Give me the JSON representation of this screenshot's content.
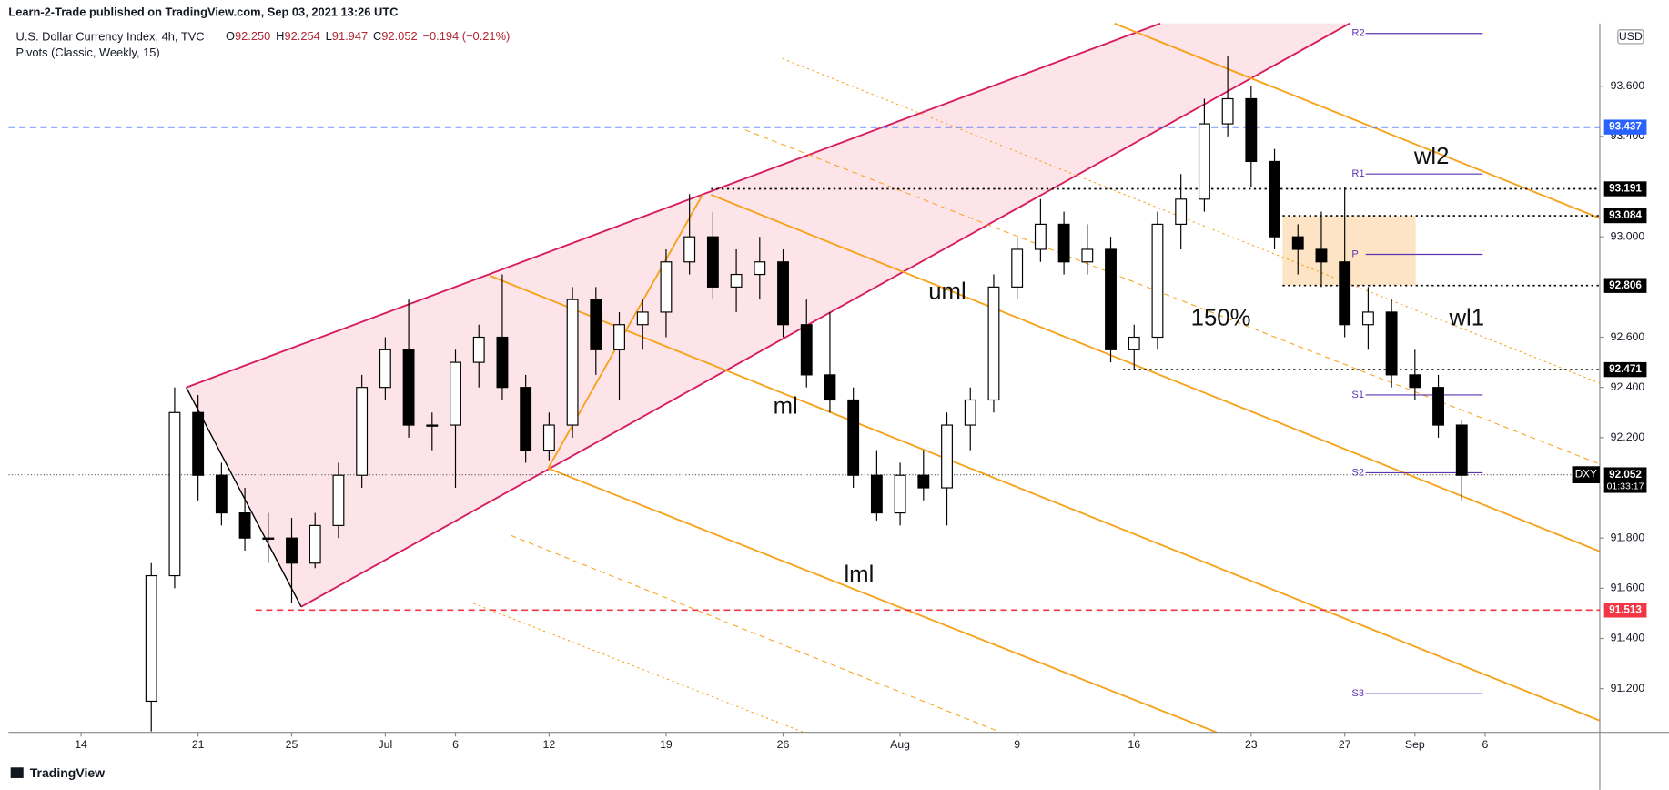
{
  "header": {
    "published": "Learn-2-Trade published on TradingView.com, Sep 03, 2021 13:26 UTC",
    "symbol": "U.S. Dollar Currency Index, 4h, TVC",
    "ohlc": [
      {
        "key": "O",
        "text": "92.250"
      },
      {
        "key": "H",
        "text": "92.254"
      },
      {
        "key": "L",
        "text": "91.947"
      },
      {
        "key": "C",
        "text": "92.052"
      }
    ],
    "change": "−0.194 (−0.21%)",
    "indicator": "Pivots (Classic, Weekly, 15)",
    "currency": "USD",
    "ticker": "DXY",
    "countdown": "01:33:17"
  },
  "footer": {
    "brand": "TradingView"
  },
  "chart_data": {
    "type": "candlestick",
    "x": [
      3,
      4,
      5,
      6,
      7,
      8,
      9,
      10,
      11,
      12,
      13,
      14,
      15,
      16,
      17,
      18,
      19,
      20,
      21,
      22,
      23,
      24,
      25,
      26,
      27,
      28,
      29,
      30,
      31,
      32,
      33,
      34,
      35,
      36,
      37,
      38,
      39,
      40,
      41,
      42,
      43,
      44,
      45,
      46,
      47,
      48,
      49,
      50,
      51,
      52,
      53,
      54,
      55,
      56,
      57,
      58,
      59
    ],
    "open": [
      91.15,
      91.65,
      92.3,
      92.05,
      91.9,
      91.8,
      91.8,
      91.7,
      91.85,
      92.05,
      92.4,
      92.55,
      92.25,
      92.25,
      92.5,
      92.6,
      92.4,
      92.15,
      92.25,
      92.75,
      92.55,
      92.65,
      92.7,
      92.9,
      93.0,
      92.8,
      92.85,
      92.9,
      92.65,
      92.45,
      92.35,
      92.05,
      91.9,
      92.05,
      92.0,
      92.25,
      92.35,
      92.8,
      92.95,
      93.05,
      92.9,
      92.95,
      92.55,
      92.6,
      93.05,
      93.15,
      93.45,
      93.55,
      93.3,
      93.0,
      92.95,
      92.9,
      92.65,
      92.7,
      92.45,
      92.4,
      92.25
    ],
    "high": [
      91.7,
      92.4,
      92.37,
      92.1,
      92.0,
      91.9,
      91.88,
      91.9,
      92.1,
      92.45,
      92.6,
      92.75,
      92.3,
      92.55,
      92.65,
      92.85,
      92.45,
      92.3,
      92.8,
      92.8,
      92.7,
      92.75,
      92.95,
      93.17,
      93.1,
      92.95,
      93.0,
      92.95,
      92.75,
      92.7,
      92.4,
      92.15,
      92.1,
      92.15,
      92.3,
      92.4,
      92.85,
      93.0,
      93.15,
      93.1,
      93.05,
      93.0,
      92.65,
      93.1,
      93.25,
      93.55,
      93.72,
      93.6,
      93.35,
      93.05,
      93.1,
      93.2,
      92.8,
      92.75,
      92.55,
      92.45,
      92.27
    ],
    "low": [
      91.03,
      91.6,
      91.95,
      91.85,
      91.75,
      91.7,
      91.54,
      91.68,
      91.8,
      92.0,
      92.35,
      92.2,
      92.15,
      92.0,
      92.4,
      92.35,
      92.1,
      92.11,
      92.2,
      92.45,
      92.35,
      92.55,
      92.6,
      92.85,
      92.75,
      92.7,
      92.75,
      92.6,
      92.4,
      92.3,
      92.0,
      91.87,
      91.85,
      91.95,
      91.85,
      92.15,
      92.3,
      92.75,
      92.9,
      92.85,
      92.85,
      92.5,
      92.47,
      92.55,
      92.95,
      93.1,
      93.4,
      93.2,
      92.95,
      92.85,
      92.8,
      92.6,
      92.55,
      92.4,
      92.35,
      92.2,
      91.95
    ],
    "close": [
      91.65,
      92.3,
      92.05,
      91.9,
      91.8,
      91.8,
      91.7,
      91.85,
      92.05,
      92.4,
      92.55,
      92.25,
      92.25,
      92.5,
      92.6,
      92.4,
      92.15,
      92.25,
      92.75,
      92.55,
      92.65,
      92.7,
      92.9,
      93.0,
      92.8,
      92.85,
      92.9,
      92.65,
      92.45,
      92.35,
      92.05,
      91.9,
      92.05,
      92.0,
      92.25,
      92.35,
      92.8,
      92.95,
      93.05,
      92.9,
      92.95,
      92.55,
      92.6,
      93.05,
      93.15,
      93.45,
      93.55,
      93.3,
      93.0,
      92.95,
      92.9,
      92.65,
      92.7,
      92.45,
      92.4,
      92.25,
      92.05
    ],
    "up_color": "#ffffff",
    "down_color": "#000000",
    "xlim": [
      -3.1,
      64.9
    ],
    "xticks": [
      {
        "value": 0,
        "label": "14"
      },
      {
        "value": 5,
        "label": "21"
      },
      {
        "value": 9,
        "label": "25"
      },
      {
        "value": 13,
        "label": "Jul"
      },
      {
        "value": 16,
        "label": "6"
      },
      {
        "value": 20,
        "label": "12"
      },
      {
        "value": 25,
        "label": "19"
      },
      {
        "value": 30,
        "label": "26"
      },
      {
        "value": 35,
        "label": "Aug"
      },
      {
        "value": 40,
        "label": "9"
      },
      {
        "value": 45,
        "label": "16"
      },
      {
        "value": 50,
        "label": "23"
      },
      {
        "value": 54,
        "label": "27"
      },
      {
        "value": 57,
        "label": "Sep"
      },
      {
        "value": 60,
        "label": "6"
      }
    ],
    "ylim": [
      91.026,
      93.85
    ],
    "yticks": [
      {
        "value": 93.6,
        "label": "93.600"
      },
      {
        "value": 93.4,
        "label": "93.400"
      },
      {
        "value": 93.0,
        "label": "93.000"
      },
      {
        "value": 92.6,
        "label": "92.600"
      },
      {
        "value": 92.4,
        "label": "92.400"
      },
      {
        "value": 92.2,
        "label": "92.200"
      },
      {
        "value": 91.8,
        "label": "91.800"
      },
      {
        "value": 91.6,
        "label": "91.600"
      },
      {
        "value": 91.4,
        "label": "91.400"
      },
      {
        "value": 91.2,
        "label": "91.200"
      }
    ],
    "levels": [
      {
        "value": 93.437,
        "color": "#2962ff",
        "dash": "dashed"
      },
      {
        "value": 93.191,
        "color": "#000000",
        "dash": "dotted"
      },
      {
        "value": 93.084,
        "color": "#000000",
        "dash": "dotted"
      },
      {
        "value": 92.806,
        "color": "#000000",
        "dash": "dotted"
      },
      {
        "value": 92.471,
        "color": "#000000",
        "dash": "dotted"
      },
      {
        "value": 91.513,
        "color": "#f23645",
        "dash": "dashed"
      }
    ],
    "last_price": 92.052,
    "pivots": [
      {
        "label": "R2",
        "value": 93.81
      },
      {
        "label": "R1",
        "value": 93.25
      },
      {
        "label": "P",
        "value": 92.93
      },
      {
        "label": "S1",
        "value": 92.37
      },
      {
        "label": "S2",
        "value": 92.06
      },
      {
        "label": "S3",
        "value": 91.18
      }
    ],
    "annotations": [
      "uml",
      "ml",
      "lml",
      "150%",
      "wl1",
      "wl2"
    ]
  }
}
